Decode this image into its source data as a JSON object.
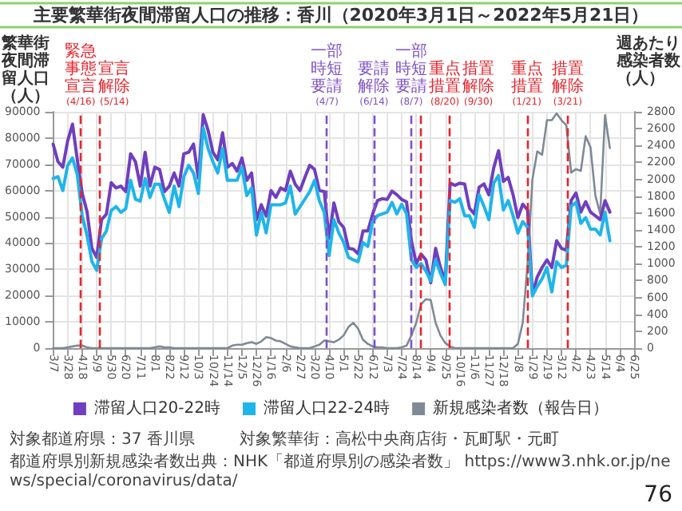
{
  "chart_data": {
    "type": "line",
    "title": "主要繁華街夜間滞留人口の推移：香川（2020年3月1日～2022年5月21日）",
    "ylabel": "繁華街夜間滞留人口（人）",
    "y2label": "週あたり感染者数（人）",
    "x": [
      "2020-03-07",
      "2020-03-14",
      "2020-03-21",
      "2020-03-28",
      "2020-04-04",
      "2020-04-11",
      "2020-04-18",
      "2020-04-25",
      "2020-05-02",
      "2020-05-09",
      "2020-05-16",
      "2020-05-23",
      "2020-05-30",
      "2020-06-06",
      "2020-06-13",
      "2020-06-20",
      "2020-06-27",
      "2020-07-04",
      "2020-07-11",
      "2020-07-18",
      "2020-07-25",
      "2020-08-01",
      "2020-08-08",
      "2020-08-15",
      "2020-08-22",
      "2020-08-29",
      "2020-09-05",
      "2020-09-12",
      "2020-09-19",
      "2020-09-26",
      "2020-10-03",
      "2020-10-10",
      "2020-10-17",
      "2020-10-24",
      "2020-10-31",
      "2020-11-07",
      "2020-11-14",
      "2020-11-21",
      "2020-11-28",
      "2020-12-05",
      "2020-12-12",
      "2020-12-19",
      "2020-12-26",
      "2021-01-02",
      "2021-01-09",
      "2021-01-16",
      "2021-01-23",
      "2021-01-30",
      "2021-02-06",
      "2021-02-13",
      "2021-02-20",
      "2021-02-27",
      "2021-03-06",
      "2021-03-13",
      "2021-03-20",
      "2021-03-27",
      "2021-04-03",
      "2021-04-10",
      "2021-04-17",
      "2021-04-24",
      "2021-05-01",
      "2021-05-08",
      "2021-05-15",
      "2021-05-22",
      "2021-05-29",
      "2021-06-05",
      "2021-06-12",
      "2021-06-19",
      "2021-06-26",
      "2021-07-03",
      "2021-07-10",
      "2021-07-17",
      "2021-07-24",
      "2021-07-31",
      "2021-08-07",
      "2021-08-14",
      "2021-08-21",
      "2021-08-28",
      "2021-09-04",
      "2021-09-11",
      "2021-09-18",
      "2021-09-25",
      "2021-10-02",
      "2021-10-09",
      "2021-10-16",
      "2021-10-23",
      "2021-10-30",
      "2021-11-06",
      "2021-11-13",
      "2021-11-20",
      "2021-11-27",
      "2021-12-04",
      "2021-12-11",
      "2021-12-18",
      "2021-12-25",
      "2022-01-01",
      "2022-01-08",
      "2022-01-15",
      "2022-01-22",
      "2022-01-29",
      "2022-02-05",
      "2022-02-12",
      "2022-02-19",
      "2022-02-26",
      "2022-03-05",
      "2022-03-12",
      "2022-03-19",
      "2022-03-26",
      "2022-04-02",
      "2022-04-09",
      "2022-04-16",
      "2022-04-23",
      "2022-04-30",
      "2022-05-07",
      "2022-05-14",
      "2022-05-21"
    ],
    "series": [
      {
        "name": "滞留人口20-22時",
        "color": "#6f3fbf",
        "values": [
          77700,
          71000,
          68900,
          78900,
          85300,
          71700,
          59000,
          52000,
          38000,
          34600,
          48900,
          51000,
          63000,
          61000,
          61700,
          59600,
          74000,
          71000,
          61700,
          74600,
          61700,
          68900,
          68000,
          59600,
          61700,
          66700,
          61700,
          74000,
          74600,
          77700,
          64600,
          88900,
          83000,
          74600,
          71700,
          82000,
          68900,
          70300,
          67400,
          72400,
          63900,
          66700,
          48900,
          54600,
          50300,
          60000,
          57400,
          61000,
          60000,
          67400,
          62400,
          60000,
          65000,
          69600,
          68000,
          60000,
          59600,
          41700,
          55300,
          48100,
          46000,
          38000,
          37700,
          35900,
          44600,
          44600,
          51100,
          56200,
          56900,
          56600,
          59800,
          58400,
          56600,
          55700,
          40900,
          32200,
          35800,
          33600,
          24900,
          38000,
          30700,
          25600,
          62800,
          62000,
          62800,
          62500,
          53300,
          51100,
          61300,
          62500,
          58400,
          68600,
          75200,
          63500,
          65000,
          58400,
          49700,
          54800,
          52600,
          20600,
          27100,
          30700,
          33600,
          30700,
          40900,
          38000,
          37300,
          56200,
          59100,
          51800,
          55800,
          51800,
          50400,
          48900,
          56200,
          51800
        ]
      },
      {
        "name": "滞留人口22-24時",
        "color": "#1fb5ea",
        "values": [
          64600,
          65300,
          60000,
          69600,
          72400,
          66000,
          50300,
          43000,
          33000,
          29600,
          41700,
          44600,
          52400,
          53900,
          51700,
          53100,
          63900,
          56700,
          56000,
          64600,
          57400,
          62400,
          62400,
          56700,
          51700,
          61700,
          53900,
          65300,
          69600,
          66700,
          58900,
          83900,
          76000,
          71000,
          66700,
          76000,
          63900,
          63900,
          63900,
          68900,
          58100,
          61000,
          43000,
          51700,
          43900,
          54600,
          54600,
          54600,
          55300,
          61700,
          51000,
          53900,
          56700,
          59600,
          63900,
          56000,
          51700,
          35300,
          48900,
          43900,
          40300,
          34600,
          33600,
          32900,
          40200,
          38700,
          48200,
          50400,
          51100,
          51800,
          55500,
          51100,
          54800,
          51100,
          33600,
          30700,
          32200,
          29300,
          25600,
          33600,
          28500,
          24200,
          56200,
          55500,
          56900,
          50400,
          50400,
          46000,
          58400,
          54000,
          48900,
          62800,
          65700,
          52600,
          56200,
          50400,
          43800,
          48200,
          46000,
          19900,
          23500,
          26400,
          30700,
          21400,
          32900,
          30700,
          31500,
          54000,
          55500,
          47500,
          49700,
          45300,
          45300,
          43100,
          51800,
          40900
        ]
      },
      {
        "name": "新規感染者数（報告日）",
        "color": "#7f8a96",
        "axis": "y2",
        "values": [
          0,
          0,
          0,
          10,
          20,
          30,
          30,
          10,
          0,
          0,
          0,
          0,
          0,
          0,
          0,
          0,
          0,
          0,
          0,
          0,
          0,
          10,
          20,
          10,
          10,
          0,
          0,
          0,
          0,
          0,
          0,
          0,
          0,
          0,
          0,
          0,
          0,
          30,
          40,
          40,
          60,
          70,
          50,
          80,
          130,
          120,
          90,
          80,
          50,
          20,
          10,
          0,
          0,
          0,
          20,
          40,
          90,
          80,
          70,
          100,
          150,
          250,
          300,
          230,
          100,
          50,
          20,
          10,
          10,
          0,
          0,
          0,
          10,
          30,
          150,
          300,
          520,
          580,
          570,
          300,
          150,
          60,
          20,
          0,
          0,
          0,
          0,
          0,
          0,
          0,
          0,
          0,
          0,
          0,
          0,
          0,
          50,
          300,
          1000,
          2000,
          2330,
          2290,
          2700,
          2700,
          2780,
          2700,
          2640,
          2080,
          2120,
          2100,
          2510,
          2380,
          1810,
          1590,
          2760,
          2370
        ]
      }
    ],
    "xlim": [
      "2020-03-07",
      "2022-06-25"
    ],
    "xticks": [
      {
        "value": "2020-03-07",
        "label": "3/7"
      },
      {
        "value": "2020-03-28",
        "label": "3/28"
      },
      {
        "value": "2020-04-18",
        "label": "4/18"
      },
      {
        "value": "2020-05-09",
        "label": "5/9"
      },
      {
        "value": "2020-05-30",
        "label": "5/30"
      },
      {
        "value": "2020-06-20",
        "label": "6/20"
      },
      {
        "value": "2020-07-11",
        "label": "7/11"
      },
      {
        "value": "2020-08-01",
        "label": "8/1"
      },
      {
        "value": "2020-08-22",
        "label": "8/22"
      },
      {
        "value": "2020-09-12",
        "label": "9/12"
      },
      {
        "value": "2020-10-03",
        "label": "10/3"
      },
      {
        "value": "2020-10-24",
        "label": "10/24"
      },
      {
        "value": "2020-11-14",
        "label": "11/14"
      },
      {
        "value": "2020-12-05",
        "label": "12/5"
      },
      {
        "value": "2020-12-26",
        "label": "12/26"
      },
      {
        "value": "2021-01-16",
        "label": "1/16"
      },
      {
        "value": "2021-02-06",
        "label": "2/6"
      },
      {
        "value": "2021-02-27",
        "label": "2/27"
      },
      {
        "value": "2021-03-20",
        "label": "3/20"
      },
      {
        "value": "2021-04-10",
        "label": "4/10"
      },
      {
        "value": "2021-05-01",
        "label": "5/1"
      },
      {
        "value": "2021-05-22",
        "label": "5/22"
      },
      {
        "value": "2021-06-12",
        "label": "6/12"
      },
      {
        "value": "2021-07-03",
        "label": "7/3"
      },
      {
        "value": "2021-07-24",
        "label": "7/24"
      },
      {
        "value": "2021-08-14",
        "label": "8/14"
      },
      {
        "value": "2021-09-04",
        "label": "9/4"
      },
      {
        "value": "2021-09-25",
        "label": "9/25"
      },
      {
        "value": "2021-10-16",
        "label": "10/16"
      },
      {
        "value": "2021-11-06",
        "label": "11/6"
      },
      {
        "value": "2021-11-27",
        "label": "11/27"
      },
      {
        "value": "2021-12-18",
        "label": "12/18"
      },
      {
        "value": "2022-01-08",
        "label": "1/8"
      },
      {
        "value": "2022-01-29",
        "label": "1/29"
      },
      {
        "value": "2022-02-19",
        "label": "2/19"
      },
      {
        "value": "2022-03-12",
        "label": "3/12"
      },
      {
        "value": "2022-04-02",
        "label": "4/2"
      },
      {
        "value": "2022-04-23",
        "label": "4/23"
      },
      {
        "value": "2022-05-14",
        "label": "5/14"
      },
      {
        "value": "2022-06-04",
        "label": "6/4"
      },
      {
        "value": "2022-06-25",
        "label": "6/25"
      }
    ],
    "ylim": [
      0,
      90000
    ],
    "yticks": [
      0,
      10000,
      20000,
      30000,
      40000,
      50000,
      60000,
      70000,
      80000,
      90000
    ],
    "y2lim": [
      0,
      2800
    ],
    "y2ticks": [
      0,
      200,
      400,
      600,
      800,
      1000,
      1200,
      1400,
      1600,
      1800,
      2000,
      2200,
      2400,
      2600,
      2800
    ],
    "ref_lines": [
      {
        "axis": "x",
        "value": "2020-04-16",
        "label": "緊急事態宣言 (4/16)",
        "color": "#e8242c",
        "line_style": "dashed"
      },
      {
        "axis": "x",
        "value": "2020-05-14",
        "label": "宣言解除 (5/14)",
        "color": "#e8242c",
        "line_style": "dashed"
      },
      {
        "axis": "x",
        "value": "2021-04-07",
        "label": "一部時短要請 (4/7)",
        "color": "#7e52c8",
        "line_style": "dashed"
      },
      {
        "axis": "x",
        "value": "2021-06-14",
        "label": "要請解除 (6/14)",
        "color": "#7e52c8",
        "line_style": "dashed"
      },
      {
        "axis": "x",
        "value": "2021-08-07",
        "label": "一部時短要請 (8/7)",
        "color": "#7e52c8",
        "line_style": "dashed"
      },
      {
        "axis": "x",
        "value": "2021-08-20",
        "label": "重点措置 (8/20)",
        "color": "#e8242c",
        "line_style": "dashed"
      },
      {
        "axis": "x",
        "value": "2021-09-30",
        "label": "措置解除 (9/30)",
        "color": "#e8242c",
        "line_style": "dashed"
      },
      {
        "axis": "x",
        "value": "2022-01-21",
        "label": "重点措置 (1/21)",
        "color": "#e8242c",
        "line_style": "dashed"
      },
      {
        "axis": "x",
        "value": "2022-03-21",
        "label": "措置解除 (3/21)",
        "color": "#e8242c",
        "line_style": "dashed"
      }
    ],
    "annotations": [
      "対象都道府県：37 香川県",
      "対象繁華街：高松中央商店街・瓦町駅・元町",
      "都道府県別新規感染者数出典：NHK「都道府県別の感染者数」 https://www3.nhk.or.jp/news/special/coronavirus/data/",
      "76"
    ],
    "grid": true,
    "legend": "bottom",
    "marker": "none",
    "line_style": "solid"
  }
}
